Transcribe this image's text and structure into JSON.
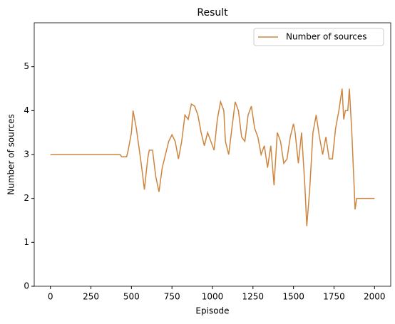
{
  "chart_data": {
    "type": "line",
    "title": "Result",
    "x_label": "Episode",
    "y_label": "Number of sources",
    "series": [
      {
        "name": "Number of sources",
        "color": "#cd853f",
        "x": [
          0,
          100,
          200,
          300,
          430,
          440,
          470,
          480,
          500,
          510,
          530,
          545,
          560,
          580,
          600,
          610,
          630,
          650,
          670,
          690,
          710,
          730,
          750,
          770,
          790,
          810,
          830,
          850,
          870,
          890,
          910,
          930,
          950,
          970,
          990,
          1010,
          1030,
          1050,
          1070,
          1080,
          1100,
          1120,
          1140,
          1160,
          1180,
          1200,
          1220,
          1240,
          1260,
          1280,
          1300,
          1320,
          1340,
          1360,
          1380,
          1400,
          1420,
          1440,
          1460,
          1480,
          1500,
          1510,
          1530,
          1550,
          1570,
          1582,
          1600,
          1620,
          1640,
          1660,
          1680,
          1700,
          1720,
          1740,
          1760,
          1780,
          1800,
          1810,
          1820,
          1835,
          1845,
          1860,
          1875,
          1880,
          1890,
          2000
        ],
        "values": [
          3.0,
          3.0,
          3.0,
          3.0,
          3.0,
          2.95,
          2.95,
          3.1,
          3.5,
          4.0,
          3.6,
          3.2,
          2.8,
          2.2,
          2.9,
          3.1,
          3.1,
          2.5,
          2.15,
          2.7,
          3.0,
          3.3,
          3.45,
          3.3,
          2.9,
          3.3,
          3.9,
          3.8,
          4.15,
          4.1,
          3.9,
          3.5,
          3.2,
          3.5,
          3.3,
          3.1,
          3.8,
          4.2,
          4.0,
          3.3,
          3.0,
          3.6,
          4.2,
          4.0,
          3.4,
          3.3,
          3.9,
          4.1,
          3.6,
          3.4,
          3.0,
          3.2,
          2.7,
          3.2,
          2.3,
          3.5,
          3.3,
          2.8,
          2.9,
          3.4,
          3.7,
          3.5,
          2.8,
          3.5,
          2.3,
          1.37,
          2.2,
          3.5,
          3.9,
          3.4,
          3.0,
          3.4,
          2.9,
          2.9,
          3.6,
          4.0,
          4.5,
          3.8,
          4.0,
          4.0,
          4.5,
          3.5,
          2.2,
          1.75,
          2.0,
          2.0
        ]
      }
    ],
    "xlim": [
      -100,
      2100
    ],
    "xticks": [
      0,
      250,
      500,
      750,
      1000,
      1250,
      1500,
      1750,
      2000
    ],
    "ylim": [
      0,
      6
    ],
    "yticks": [
      0,
      1,
      2,
      3,
      4,
      5
    ],
    "grid": false,
    "legend": "upper right"
  }
}
